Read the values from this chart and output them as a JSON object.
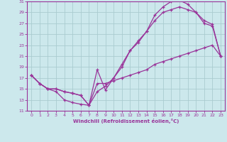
{
  "xlabel": "Windchill (Refroidissement éolien,°C)",
  "xlim": [
    -0.5,
    23.5
  ],
  "ylim": [
    11,
    31
  ],
  "xticks": [
    0,
    1,
    2,
    3,
    4,
    5,
    6,
    7,
    8,
    9,
    10,
    11,
    12,
    13,
    14,
    15,
    16,
    17,
    18,
    19,
    20,
    21,
    22,
    23
  ],
  "yticks": [
    11,
    13,
    15,
    17,
    19,
    21,
    23,
    25,
    27,
    29,
    31
  ],
  "bg_color": "#cce8ec",
  "grid_color": "#aaccd0",
  "line_color": "#993399",
  "line1_x": [
    0,
    1,
    2,
    3,
    4,
    5,
    6,
    7,
    8,
    9,
    10,
    11,
    12,
    13,
    14,
    15,
    16,
    17,
    18,
    19,
    20,
    21,
    22,
    23
  ],
  "line1_y": [
    17.5,
    16.0,
    15.0,
    14.5,
    13.0,
    12.5,
    12.2,
    12.0,
    18.5,
    14.8,
    17.0,
    19.0,
    22.0,
    23.5,
    25.5,
    28.5,
    30.0,
    31.0,
    31.2,
    30.5,
    29.0,
    27.0,
    26.5,
    21.0
  ],
  "line2_x": [
    0,
    1,
    2,
    3,
    4,
    5,
    6,
    7,
    8,
    9,
    10,
    11,
    12,
    13,
    14,
    15,
    16,
    17,
    18,
    19,
    20,
    21,
    22,
    23
  ],
  "line2_y": [
    17.5,
    16.0,
    15.0,
    15.0,
    14.5,
    14.2,
    13.8,
    12.0,
    14.5,
    15.5,
    17.0,
    19.5,
    22.0,
    23.8,
    25.5,
    27.5,
    29.0,
    29.5,
    30.0,
    29.5,
    29.0,
    27.5,
    26.8,
    21.0
  ],
  "line3_x": [
    0,
    1,
    2,
    3,
    4,
    5,
    6,
    7,
    8,
    9,
    10,
    11,
    12,
    13,
    14,
    15,
    16,
    17,
    18,
    19,
    20,
    21,
    22,
    23
  ],
  "line3_y": [
    17.5,
    16.0,
    15.0,
    15.0,
    14.5,
    14.2,
    13.8,
    12.0,
    16.0,
    16.0,
    16.5,
    17.0,
    17.5,
    18.0,
    18.5,
    19.5,
    20.0,
    20.5,
    21.0,
    21.5,
    22.0,
    22.5,
    23.0,
    21.0
  ]
}
